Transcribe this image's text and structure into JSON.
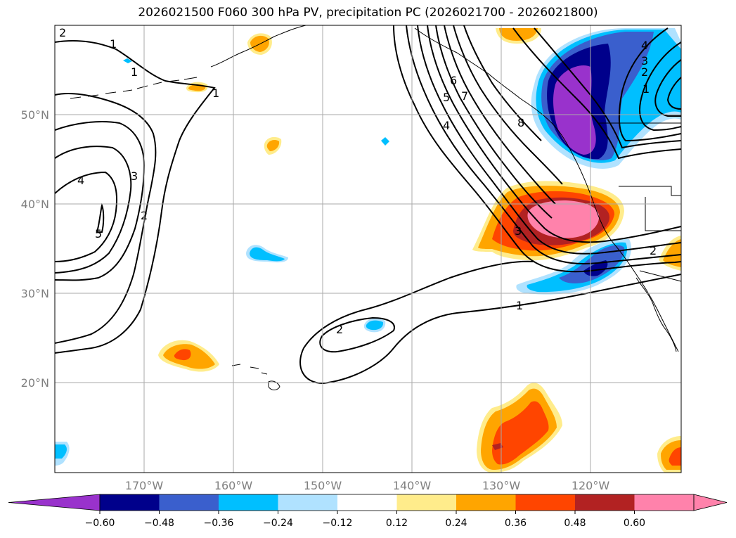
{
  "title": "2026021500 F060 300 hPa PV, precipitation PC (2026021700 - 2026021800)",
  "latitude_labels": [
    "50°N",
    "40°N",
    "30°N",
    "20°N"
  ],
  "longitude_labels": [
    "170°W",
    "160°W",
    "150°W",
    "140°W",
    "130°W",
    "120°W"
  ],
  "contour_labels": [
    "1",
    "2",
    "3",
    "4",
    "5",
    "6",
    "7",
    "8"
  ],
  "colorbar": {
    "tick_labels": [
      "−0.60",
      "−0.48",
      "−0.36",
      "−0.24",
      "−0.12",
      "0.12",
      "0.24",
      "0.36",
      "0.48",
      "0.60"
    ],
    "bins": [
      {
        "color": "#9932cc"
      },
      {
        "color": "#00008b"
      },
      {
        "color": "#3a5fcd"
      },
      {
        "color": "#00bfff"
      },
      {
        "color": "#b0e2ff"
      },
      {
        "color": "#ffffff"
      },
      {
        "color": "#ffec8b"
      },
      {
        "color": "#ffa500"
      },
      {
        "color": "#ff4500"
      },
      {
        "color": "#b22222"
      },
      {
        "color": "#ff82ab"
      },
      {
        "color": "#ff82ab"
      }
    ]
  },
  "colors": {
    "gridline": "#aaaaaa",
    "contour": "#000000",
    "coastline": "#000000"
  }
}
